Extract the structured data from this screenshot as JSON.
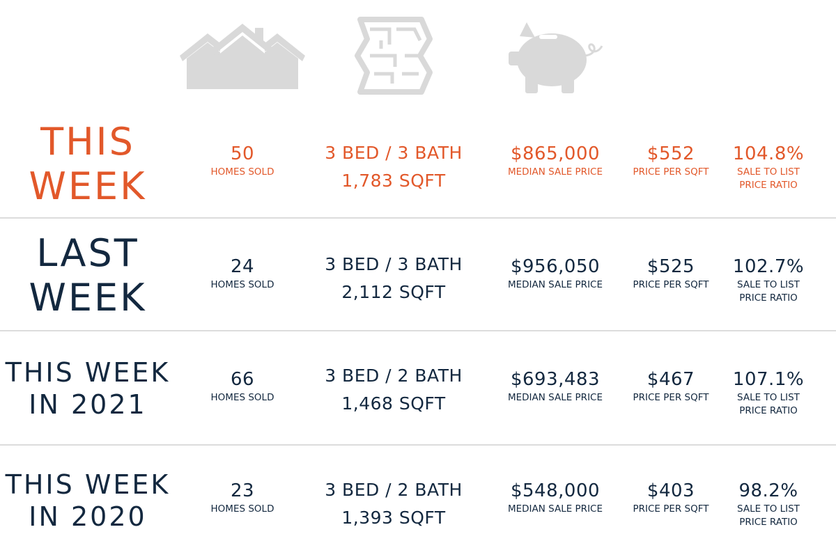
{
  "header": {
    "icons": [
      {
        "name": "houses-icon",
        "color": "#d9d9d9"
      },
      {
        "name": "floor-plan-icon",
        "color": "#d9d9d9"
      },
      {
        "name": "piggy-bank-icon",
        "color": "#d9d9d9"
      }
    ]
  },
  "colors": {
    "accent": "#e2582a",
    "text": "#13283f",
    "divider": "#dcdcdc"
  },
  "rows": [
    {
      "label_line1": "THIS",
      "label_line2": "WEEK",
      "homes_sold": "50",
      "homes_sold_label": "HOMES SOLD",
      "bed_bath": "3 BED / 3 BATH",
      "sqft": "1,783 SQFT",
      "median_price": "$865,000",
      "median_price_label": "MEDIAN SALE PRICE",
      "price_per_sqft": "$552",
      "price_per_sqft_label": "PRICE PER SQFT",
      "ratio": "104.8%",
      "ratio_label_line1": "SALE TO LIST",
      "ratio_label_line2": "PRICE RATIO"
    },
    {
      "label_line1": "LAST",
      "label_line2": "WEEK",
      "homes_sold": "24",
      "homes_sold_label": "HOMES SOLD",
      "bed_bath": "3 BED / 3 BATH",
      "sqft": "2,112 SQFT",
      "median_price": "$956,050",
      "median_price_label": "MEDIAN SALE PRICE",
      "price_per_sqft": "$525",
      "price_per_sqft_label": "PRICE PER SQFT",
      "ratio": "102.7%",
      "ratio_label_line1": "SALE TO LIST",
      "ratio_label_line2": "PRICE RATIO"
    },
    {
      "label_line1": "THIS WEEK",
      "label_line2": "IN 2021",
      "homes_sold": "66",
      "homes_sold_label": "HOMES SOLD",
      "bed_bath": "3 BED / 2 BATH",
      "sqft": "1,468 SQFT",
      "median_price": "$693,483",
      "median_price_label": "MEDIAN SALE PRICE",
      "price_per_sqft": "$467",
      "price_per_sqft_label": "PRICE PER SQFT",
      "ratio": "107.1%",
      "ratio_label_line1": "SALE TO LIST",
      "ratio_label_line2": "PRICE RATIO"
    },
    {
      "label_line1": "THIS WEEK",
      "label_line2": "IN 2020",
      "homes_sold": "23",
      "homes_sold_label": "HOMES SOLD",
      "bed_bath": "3 BED / 2 BATH",
      "sqft": "1,393 SQFT",
      "median_price": "$548,000",
      "median_price_label": "MEDIAN SALE PRICE",
      "price_per_sqft": "$403",
      "price_per_sqft_label": "PRICE PER SQFT",
      "ratio": "98.2%",
      "ratio_label_line1": "SALE TO LIST",
      "ratio_label_line2": "PRICE RATIO"
    }
  ]
}
